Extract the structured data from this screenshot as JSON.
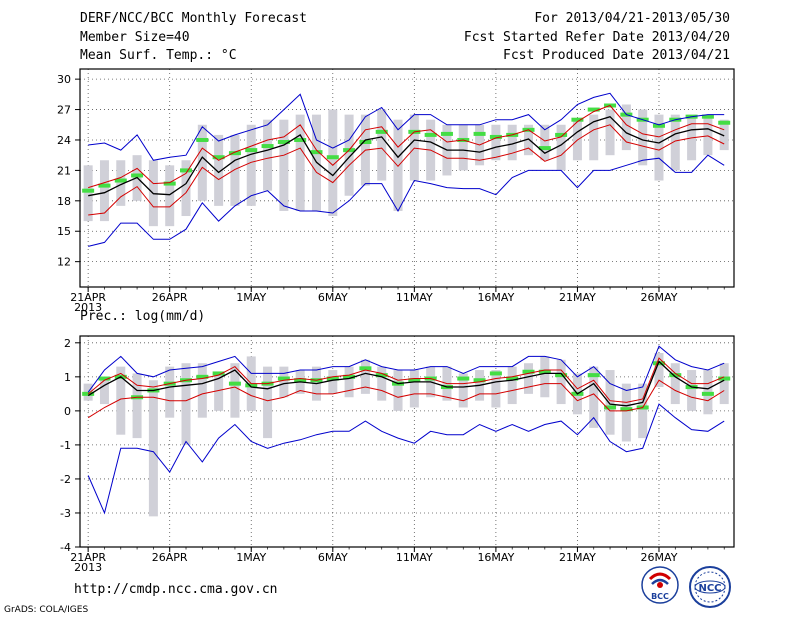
{
  "header": {
    "title": "DERF/NCC/BCC Monthly Forecast",
    "member_size": "Member Size=40",
    "variable": "Mean Surf. Temp.: °C",
    "period": "For 2013/04/21-2013/05/30",
    "started": "Fcst Started Refer Date 2013/04/20",
    "produced": "Fcst Produced Date 2013/04/21"
  },
  "footer": {
    "url": "http://cmdp.ncc.cma.gov.cn",
    "grads": "GrADS: COLA/IGES"
  },
  "logos": {
    "bcc": "BCC",
    "ncc": "NCC"
  },
  "colors": {
    "envelope": "#0000cc",
    "spread": "#d40000",
    "mean": "#000000",
    "obs": "#44dd44",
    "bar": "#d0d0d8",
    "grid": "#555555"
  },
  "chart_data": [
    {
      "type": "line",
      "title": "Mean Surf. Temp.: °C",
      "year_label": "2013",
      "x": [
        1,
        2,
        3,
        4,
        5,
        6,
        7,
        8,
        9,
        10,
        11,
        12,
        13,
        14,
        15,
        16,
        17,
        18,
        19,
        20,
        21,
        22,
        23,
        24,
        25,
        26,
        27,
        28,
        29,
        30,
        31,
        32,
        33,
        34,
        35,
        36,
        37,
        38,
        39,
        40
      ],
      "x_ticks": [
        {
          "x": 1,
          "label": "21APR"
        },
        {
          "x": 6,
          "label": "26APR"
        },
        {
          "x": 11,
          "label": "1MAY"
        },
        {
          "x": 16,
          "label": "6MAY"
        },
        {
          "x": 21,
          "label": "11MAY"
        },
        {
          "x": 26,
          "label": "16MAY"
        },
        {
          "x": 31,
          "label": "21MAY"
        },
        {
          "x": 36,
          "label": "26MAY"
        }
      ],
      "ylim": [
        9.5,
        31
      ],
      "y_ticks": [
        12,
        15,
        18,
        21,
        24,
        27,
        30
      ],
      "box_low": [
        16,
        16,
        17.5,
        18,
        15.5,
        15.5,
        16.5,
        18,
        17.5,
        17.5,
        17.5,
        19,
        17,
        17,
        17,
        16.5,
        18.5,
        19.5,
        20,
        17,
        20,
        20,
        20.5,
        21,
        21.5,
        22,
        22,
        22.5,
        22,
        21,
        22,
        22,
        22.5,
        23,
        21.5,
        20,
        21,
        22,
        22.5,
        23
      ],
      "box_high": [
        21.5,
        22,
        22,
        22.5,
        22,
        21.5,
        22,
        25.5,
        24.5,
        24.5,
        25.5,
        26,
        26,
        26.5,
        26.5,
        27,
        26.5,
        26.5,
        27,
        26,
        26.5,
        26,
        25.5,
        25.5,
        25.5,
        25.5,
        25.5,
        25.5,
        25.5,
        25.5,
        26,
        26.5,
        27,
        27.5,
        27,
        26.5,
        26.5,
        26.5,
        26.5,
        26
      ],
      "series": [
        {
          "name": "upper-envelope",
          "color": "#0000cc",
          "values": [
            23.5,
            23.7,
            23,
            24.5,
            22,
            22.3,
            22.5,
            25.3,
            23.9,
            24.5,
            25,
            25.5,
            27,
            28.5,
            24,
            23.2,
            24,
            26.3,
            27.2,
            25,
            26.5,
            26.5,
            25.5,
            25.5,
            25.5,
            26,
            26,
            26.5,
            25,
            26,
            27.5,
            28.2,
            28.6,
            26.5,
            26,
            25.5,
            26,
            26.3,
            26.5,
            26.5
          ]
        },
        {
          "name": "upper-spread",
          "color": "#d40000",
          "values": [
            19.3,
            19.8,
            20.3,
            21.2,
            19.7,
            19.8,
            20.7,
            23.2,
            22,
            22.8,
            23.4,
            24,
            24.3,
            25.5,
            23,
            21.5,
            23,
            25,
            25.3,
            23.3,
            24.8,
            25,
            23.8,
            24,
            23.5,
            24.2,
            24.5,
            25,
            23.9,
            24.3,
            25.8,
            26.8,
            27.4,
            25.5,
            24.6,
            24.3,
            25,
            25.6,
            25.6,
            25
          ]
        },
        {
          "name": "ensemble-mean",
          "color": "#000000",
          "values": [
            18.5,
            18.8,
            19.6,
            20.3,
            18.7,
            18.6,
            19.7,
            22.3,
            20.8,
            22,
            22.6,
            23,
            23.5,
            24.5,
            21.8,
            20.5,
            22.3,
            24,
            24.3,
            22.3,
            24,
            23.8,
            23,
            23,
            22.8,
            23.3,
            23.6,
            24.1,
            22.7,
            23.5,
            24.8,
            25.8,
            26.3,
            24.7,
            24,
            23.7,
            24.6,
            25,
            25.1,
            24.4
          ]
        },
        {
          "name": "lower-spread",
          "color": "#d40000",
          "values": [
            16.6,
            16.8,
            18.4,
            19.4,
            17.4,
            17.4,
            18.8,
            21.3,
            20.1,
            21.1,
            21.8,
            22.2,
            22.5,
            23.2,
            20.8,
            19.8,
            21.5,
            23,
            23.2,
            21.4,
            23.2,
            23,
            22.2,
            22.2,
            22,
            22.3,
            22.7,
            23.2,
            21.9,
            22.5,
            24,
            25,
            25.5,
            23.8,
            23.4,
            23,
            23.9,
            24.2,
            24.4,
            23.6
          ]
        },
        {
          "name": "lower-envelope",
          "color": "#0000cc",
          "values": [
            13.5,
            13.9,
            15.8,
            15.8,
            14.2,
            14.2,
            15.2,
            17.8,
            16,
            17.5,
            18.5,
            19,
            17.5,
            17,
            17,
            16.8,
            18,
            19.7,
            19.7,
            17,
            20,
            19.7,
            19.3,
            19.2,
            19.2,
            18.6,
            20.3,
            21,
            21,
            21,
            19.3,
            21,
            21,
            21.5,
            22,
            22.2,
            20.8,
            20.8,
            22.5,
            21.5
          ]
        }
      ],
      "obs": [
        19,
        19.5,
        20,
        20.5,
        null,
        19.7,
        21,
        24,
        22.3,
        22.7,
        23,
        23.4,
        23.8,
        24,
        22.8,
        22.3,
        23,
        23.8,
        24.8,
        null,
        24.8,
        24.5,
        24.6,
        24,
        24.6,
        24.3,
        24.5,
        25,
        23.2,
        24.5,
        26,
        27,
        27.4,
        26.5,
        26,
        25.4,
        26,
        26.3,
        26.3,
        25.7
      ]
    },
    {
      "type": "line",
      "title": "Prec.: log(mm/d)",
      "year_label": "2013",
      "x": [
        1,
        2,
        3,
        4,
        5,
        6,
        7,
        8,
        9,
        10,
        11,
        12,
        13,
        14,
        15,
        16,
        17,
        18,
        19,
        20,
        21,
        22,
        23,
        24,
        25,
        26,
        27,
        28,
        29,
        30,
        31,
        32,
        33,
        34,
        35,
        36,
        37,
        38,
        39,
        40
      ],
      "x_ticks": [
        {
          "x": 1,
          "label": "21APR"
        },
        {
          "x": 6,
          "label": "26APR"
        },
        {
          "x": 11,
          "label": "1MAY"
        },
        {
          "x": 16,
          "label": "6MAY"
        },
        {
          "x": 21,
          "label": "11MAY"
        },
        {
          "x": 26,
          "label": "16MAY"
        },
        {
          "x": 31,
          "label": "21MAY"
        },
        {
          "x": 36,
          "label": "26MAY"
        }
      ],
      "ylim": [
        -4,
        2.2
      ],
      "y_ticks": [
        -4,
        -3,
        -2,
        -1,
        0,
        1,
        2
      ],
      "box_low": [
        0.3,
        0.2,
        -0.7,
        -0.8,
        -3.1,
        -0.2,
        -1,
        -0.2,
        0,
        -0.2,
        0,
        -0.8,
        0.4,
        0.5,
        0.3,
        0.5,
        0.4,
        0.5,
        0.3,
        0,
        0.1,
        0.4,
        0.3,
        0.1,
        0.3,
        0.1,
        0.2,
        0.5,
        0.4,
        0.2,
        -0.1,
        -0.5,
        -0.7,
        -0.9,
        -0.8,
        0.7,
        0.2,
        0,
        -0.1,
        0.2
      ],
      "box_high": [
        0.8,
        1,
        1.3,
        1.1,
        0.9,
        1.3,
        1.4,
        1.4,
        1.1,
        1.4,
        1.6,
        1.3,
        1.3,
        1.2,
        1.3,
        1.2,
        1.3,
        1.5,
        1.3,
        1.2,
        1.2,
        1.3,
        1.3,
        1.1,
        1.2,
        1.2,
        1.3,
        1.4,
        1.6,
        1.5,
        1.1,
        1.3,
        1.2,
        0.8,
        0.8,
        1.7,
        1.4,
        1.2,
        1.2,
        1.4
      ],
      "series": [
        {
          "name": "upper-envelope",
          "color": "#0000cc",
          "values": [
            0.55,
            1.2,
            1.6,
            1.1,
            1,
            1.2,
            1.25,
            1.3,
            1.45,
            1.6,
            1.1,
            1.1,
            1.1,
            1.2,
            1.2,
            1.3,
            1.3,
            1.5,
            1.3,
            1.2,
            1.2,
            1.3,
            1.3,
            1.1,
            1.3,
            1.3,
            1.3,
            1.6,
            1.6,
            1.5,
            1,
            1.3,
            0.8,
            0.6,
            0.7,
            1.9,
            1.5,
            1.3,
            1.2,
            1.4
          ]
        },
        {
          "name": "upper-spread",
          "color": "#d40000",
          "values": [
            0.5,
            0.9,
            1.1,
            0.75,
            0.7,
            0.8,
            0.9,
            0.95,
            1.05,
            1.3,
            0.8,
            0.8,
            0.9,
            0.95,
            0.9,
            1,
            1.05,
            1.2,
            1.1,
            0.9,
            0.95,
            0.95,
            0.8,
            0.8,
            0.85,
            0.95,
            1,
            1.1,
            1.2,
            1.2,
            0.65,
            0.9,
            0.3,
            0.25,
            0.35,
            1.55,
            1.1,
            0.8,
            0.8,
            1
          ]
        },
        {
          "name": "ensemble-mean",
          "color": "#000000",
          "values": [
            0.45,
            0.75,
            1,
            0.6,
            0.6,
            0.7,
            0.75,
            0.8,
            0.95,
            1.2,
            0.7,
            0.65,
            0.8,
            0.85,
            0.8,
            0.9,
            0.95,
            1.1,
            1,
            0.8,
            0.85,
            0.85,
            0.7,
            0.7,
            0.75,
            0.85,
            0.9,
            1,
            1.1,
            1.1,
            0.5,
            0.8,
            0.2,
            0.15,
            0.25,
            1.45,
            1,
            0.7,
            0.65,
            0.9
          ]
        },
        {
          "name": "lower-spread",
          "color": "#d40000",
          "values": [
            -0.2,
            0.1,
            0.35,
            0.4,
            0.4,
            0.3,
            0.3,
            0.5,
            0.6,
            0.7,
            0.45,
            0.3,
            0.4,
            0.6,
            0.5,
            0.5,
            0.6,
            0.7,
            0.6,
            0.4,
            0.5,
            0.5,
            0.4,
            0.3,
            0.5,
            0.5,
            0.6,
            0.7,
            0.8,
            0.8,
            0.3,
            0.5,
            0,
            0,
            0.1,
            0.9,
            0.6,
            0.4,
            0.3,
            0.6
          ]
        },
        {
          "name": "lower-envelope",
          "color": "#0000cc",
          "values": [
            -1.9,
            -3,
            -1.1,
            -1.1,
            -1.2,
            -1.8,
            -0.9,
            -1.5,
            -0.8,
            -0.4,
            -0.9,
            -1.1,
            -0.95,
            -0.85,
            -0.7,
            -0.6,
            -0.6,
            -0.3,
            -0.6,
            -0.8,
            -0.95,
            -0.6,
            -0.7,
            -0.7,
            -0.4,
            -0.6,
            -0.4,
            -0.6,
            -0.4,
            -0.3,
            -0.7,
            -0.2,
            -0.9,
            -1.2,
            -1.1,
            0.2,
            -0.2,
            -0.55,
            -0.6,
            -0.3
          ]
        }
      ],
      "obs": [
        0.5,
        0.95,
        1,
        0.4,
        0.6,
        0.8,
        0.9,
        1,
        1.1,
        0.8,
        0.75,
        0.8,
        0.95,
        0.9,
        0.9,
        0.95,
        1,
        1.25,
        1.05,
        0.8,
        0.9,
        0.95,
        0.7,
        0.95,
        0.9,
        1.1,
        0.95,
        1.15,
        1.15,
        1.05,
        0.5,
        1.05,
        0.1,
        0.05,
        0.1,
        1.4,
        1.05,
        0.7,
        0.5,
        0.95
      ]
    }
  ]
}
